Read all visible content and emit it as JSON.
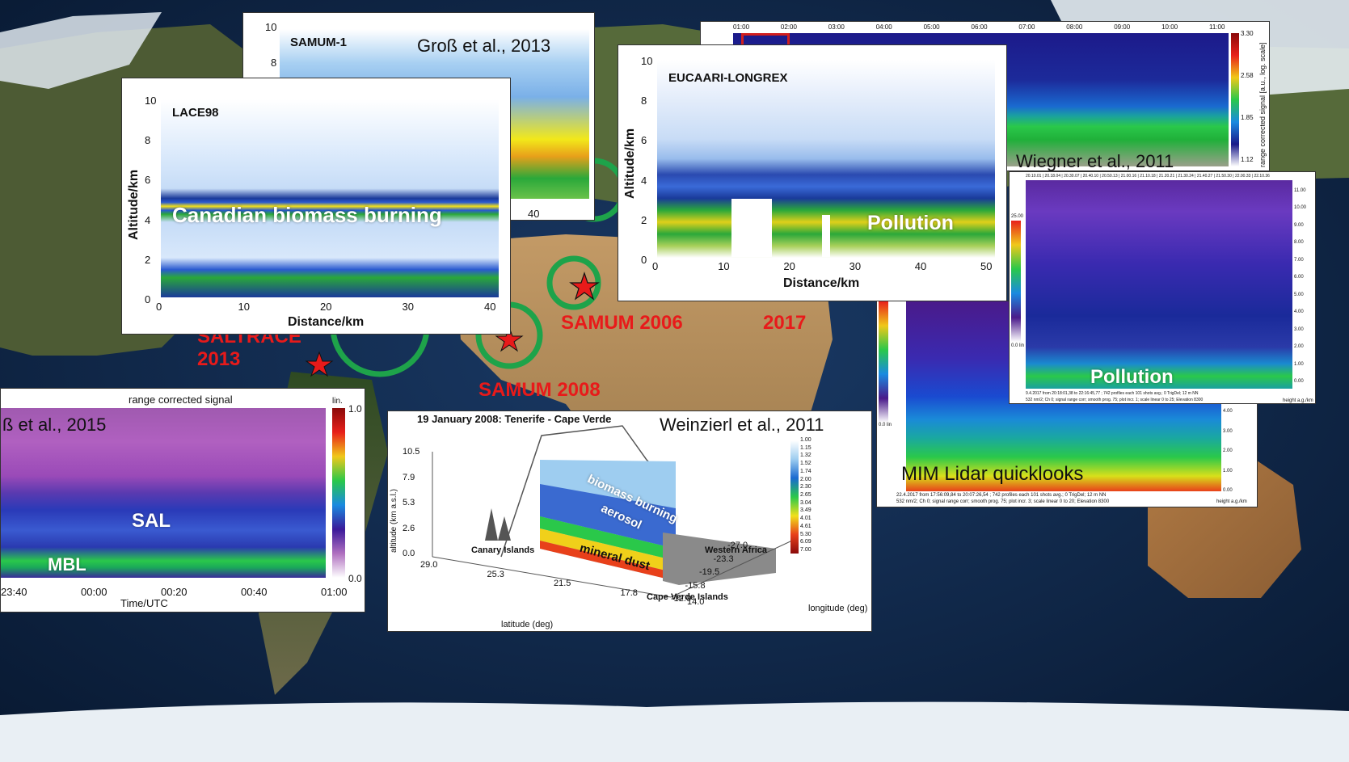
{
  "colors": {
    "ocean": "#10284d",
    "land": "#5a6a3a",
    "desert": "#b38a5a",
    "ice": "#e8eef3",
    "campaign_text": "#e81a1a",
    "circle": "#1ea34a"
  },
  "campaigns": [
    {
      "label": "SALTRACE",
      "year": "2013"
    },
    {
      "label": "SAMUM 2006"
    },
    {
      "label": "SAMUM 2008"
    },
    {
      "label": "2017"
    }
  ],
  "panels": {
    "samum1": {
      "title": "SAMUM-1",
      "citation": "Groß et al., 2013",
      "y_ticks": [
        "10",
        "8"
      ],
      "x_ticks": [
        "40"
      ]
    },
    "lace98": {
      "title": "LACE98",
      "overlay": "Canadian biomass burning",
      "ylabel": "Altitude/km",
      "xlabel": "Distance/km",
      "y_ticks": [
        "10",
        "8",
        "6",
        "4",
        "2",
        "0"
      ],
      "x_ticks": [
        "0",
        "10",
        "20",
        "30",
        "40"
      ]
    },
    "eucaari": {
      "title": "EUCAARI-LONGREX",
      "overlay": "Pollution",
      "ylabel": "Altitude/km",
      "xlabel": "Distance/km",
      "y_ticks": [
        "10",
        "8",
        "6",
        "4",
        "2",
        "0"
      ],
      "x_ticks": [
        "0",
        "10",
        "20",
        "30",
        "40",
        "50"
      ]
    },
    "wiegner": {
      "citation": "Wiegner et al., 2011",
      "time_ticks": [
        "01:00",
        "02:00",
        "03:00",
        "04:00",
        "05:00",
        "06:00",
        "07:00",
        "08:00",
        "09:00",
        "10:00",
        "11:00"
      ],
      "colorbar_ticks": [
        "3.30",
        "2.58",
        "1.85",
        "1.12"
      ],
      "colorbar_label": "range corrected signal [a.u., log. scale]"
    },
    "mim_front": {
      "overlay": "Pollution",
      "header": "20.10.01 | 20.18.04 | 20.30.07 | 20.40.10 | 20.50.13 | 21.00.16 | 21.10.18 | 21.20.21 | 21.30.24 | 21.40.27 | 21.50.30 | 22.00.33 | 22.10.36",
      "footer": "9.4.2017 from 20:18:01,38 to 22:16:45,77 ; 742 profiles each 101 shots avg.; 0 TrigDel; 12 m NN",
      "footer2": "532 nm/2; Ch 0; signal range corr; smooth prog. 75; plot incr. 1; scale linear 0 to 25; Elevation 8300",
      "height_label": "height a.g./km",
      "y_ticks": [
        "11.00",
        "10.00",
        "9.00",
        "8.00",
        "7.00",
        "6.00",
        "5.00",
        "4.00",
        "3.00",
        "2.00",
        "1.00",
        "0.00"
      ],
      "colorbar_top": "25.00",
      "colorbar_bottom": "0.0 lin"
    },
    "mim_back": {
      "label": "MIM Lidar quicklooks",
      "footer": "22.4.2017 from 17:56:09,84 to 20:07:26,54 ; 742 profiles each 101 shots avg.; 0 TrigDel; 12 m NN",
      "footer2": "532 nm/2; Ch 0; signal range corr; smooth prog. 75; plot incr. 3; scale linear 0 to 20; Elevation 8300",
      "height_label": "height a.g./km",
      "y_ticks": [
        "4.00",
        "3.00",
        "2.00",
        "1.00",
        "0.00"
      ],
      "colorbar_bottom": "0.0 lin"
    },
    "gross2015": {
      "title": "range corrected signal",
      "citation": "ß et al., 2015",
      "overlay_sal": "SAL",
      "overlay_mbl": "MBL",
      "colorbar_top": "1.0",
      "colorbar_bottom": "0.0",
      "colorbar_unit": "lin.",
      "x_ticks": [
        "23:40",
        "00:00",
        "00:20",
        "00:40",
        "01:00"
      ],
      "xlabel": "Time/UTC"
    },
    "weinzierl": {
      "title": "19 January 2008: Tenerife - Cape Verde",
      "citation": "Weinzierl et al., 2011",
      "zlabel": "altitude (km a.s.l.)",
      "z_ticks": [
        "10.5",
        "7.9",
        "5.3",
        "2.6",
        "0.0"
      ],
      "lat_label": "latitude (deg)",
      "lat_ticks": [
        "29.0",
        "25.3",
        "21.5",
        "17.8",
        "14.0"
      ],
      "lon_label": "longitude (deg)",
      "lon_ticks": [
        "-12.0",
        "-15.8",
        "-19.5",
        "-23.3",
        "-27.0"
      ],
      "place_canary": "Canary Islands",
      "place_capeverde": "Cape Verde Islands",
      "place_westafrica": "Western Africa",
      "layer_bb": "biomass burning",
      "layer_aerosol": "aerosol",
      "layer_dust": "mineral dust",
      "colorbar_ticks": [
        "1.00",
        "1.15",
        "1.32",
        "1.52",
        "1.74",
        "2.00",
        "2.30",
        "2.65",
        "3.04",
        "3.49",
        "4.01",
        "4.61",
        "5.30",
        "6.09",
        "7.00"
      ]
    }
  }
}
